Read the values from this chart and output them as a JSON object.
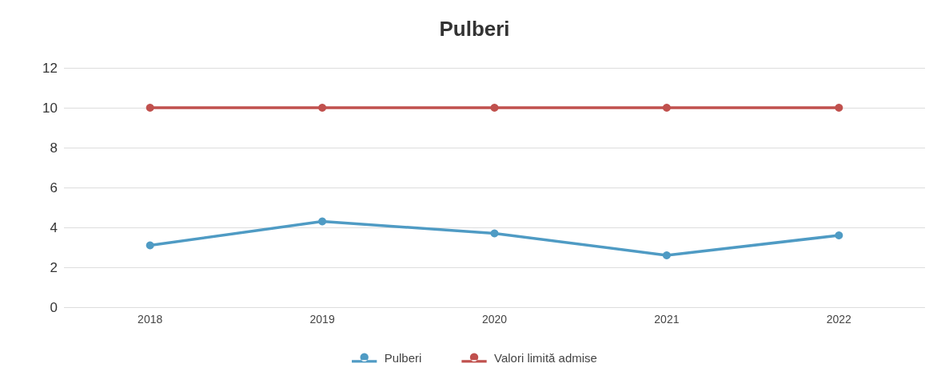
{
  "chart_data": {
    "type": "line",
    "title": "Pulberi",
    "categories": [
      "2018",
      "2019",
      "2020",
      "2021",
      "2022"
    ],
    "series": [
      {
        "name": "Pulberi",
        "color": "#4f9bc4",
        "values": [
          3.1,
          4.3,
          3.7,
          2.6,
          3.6
        ]
      },
      {
        "name": "Valori limită admise",
        "color": "#c0504d",
        "values": [
          10,
          10,
          10,
          10,
          10
        ]
      }
    ],
    "ylim": [
      0,
      12
    ],
    "yticks": [
      0,
      2,
      4,
      6,
      8,
      10,
      12
    ],
    "grid": "y",
    "legend": "bottom",
    "marker": "circle",
    "line_style": "solid"
  }
}
